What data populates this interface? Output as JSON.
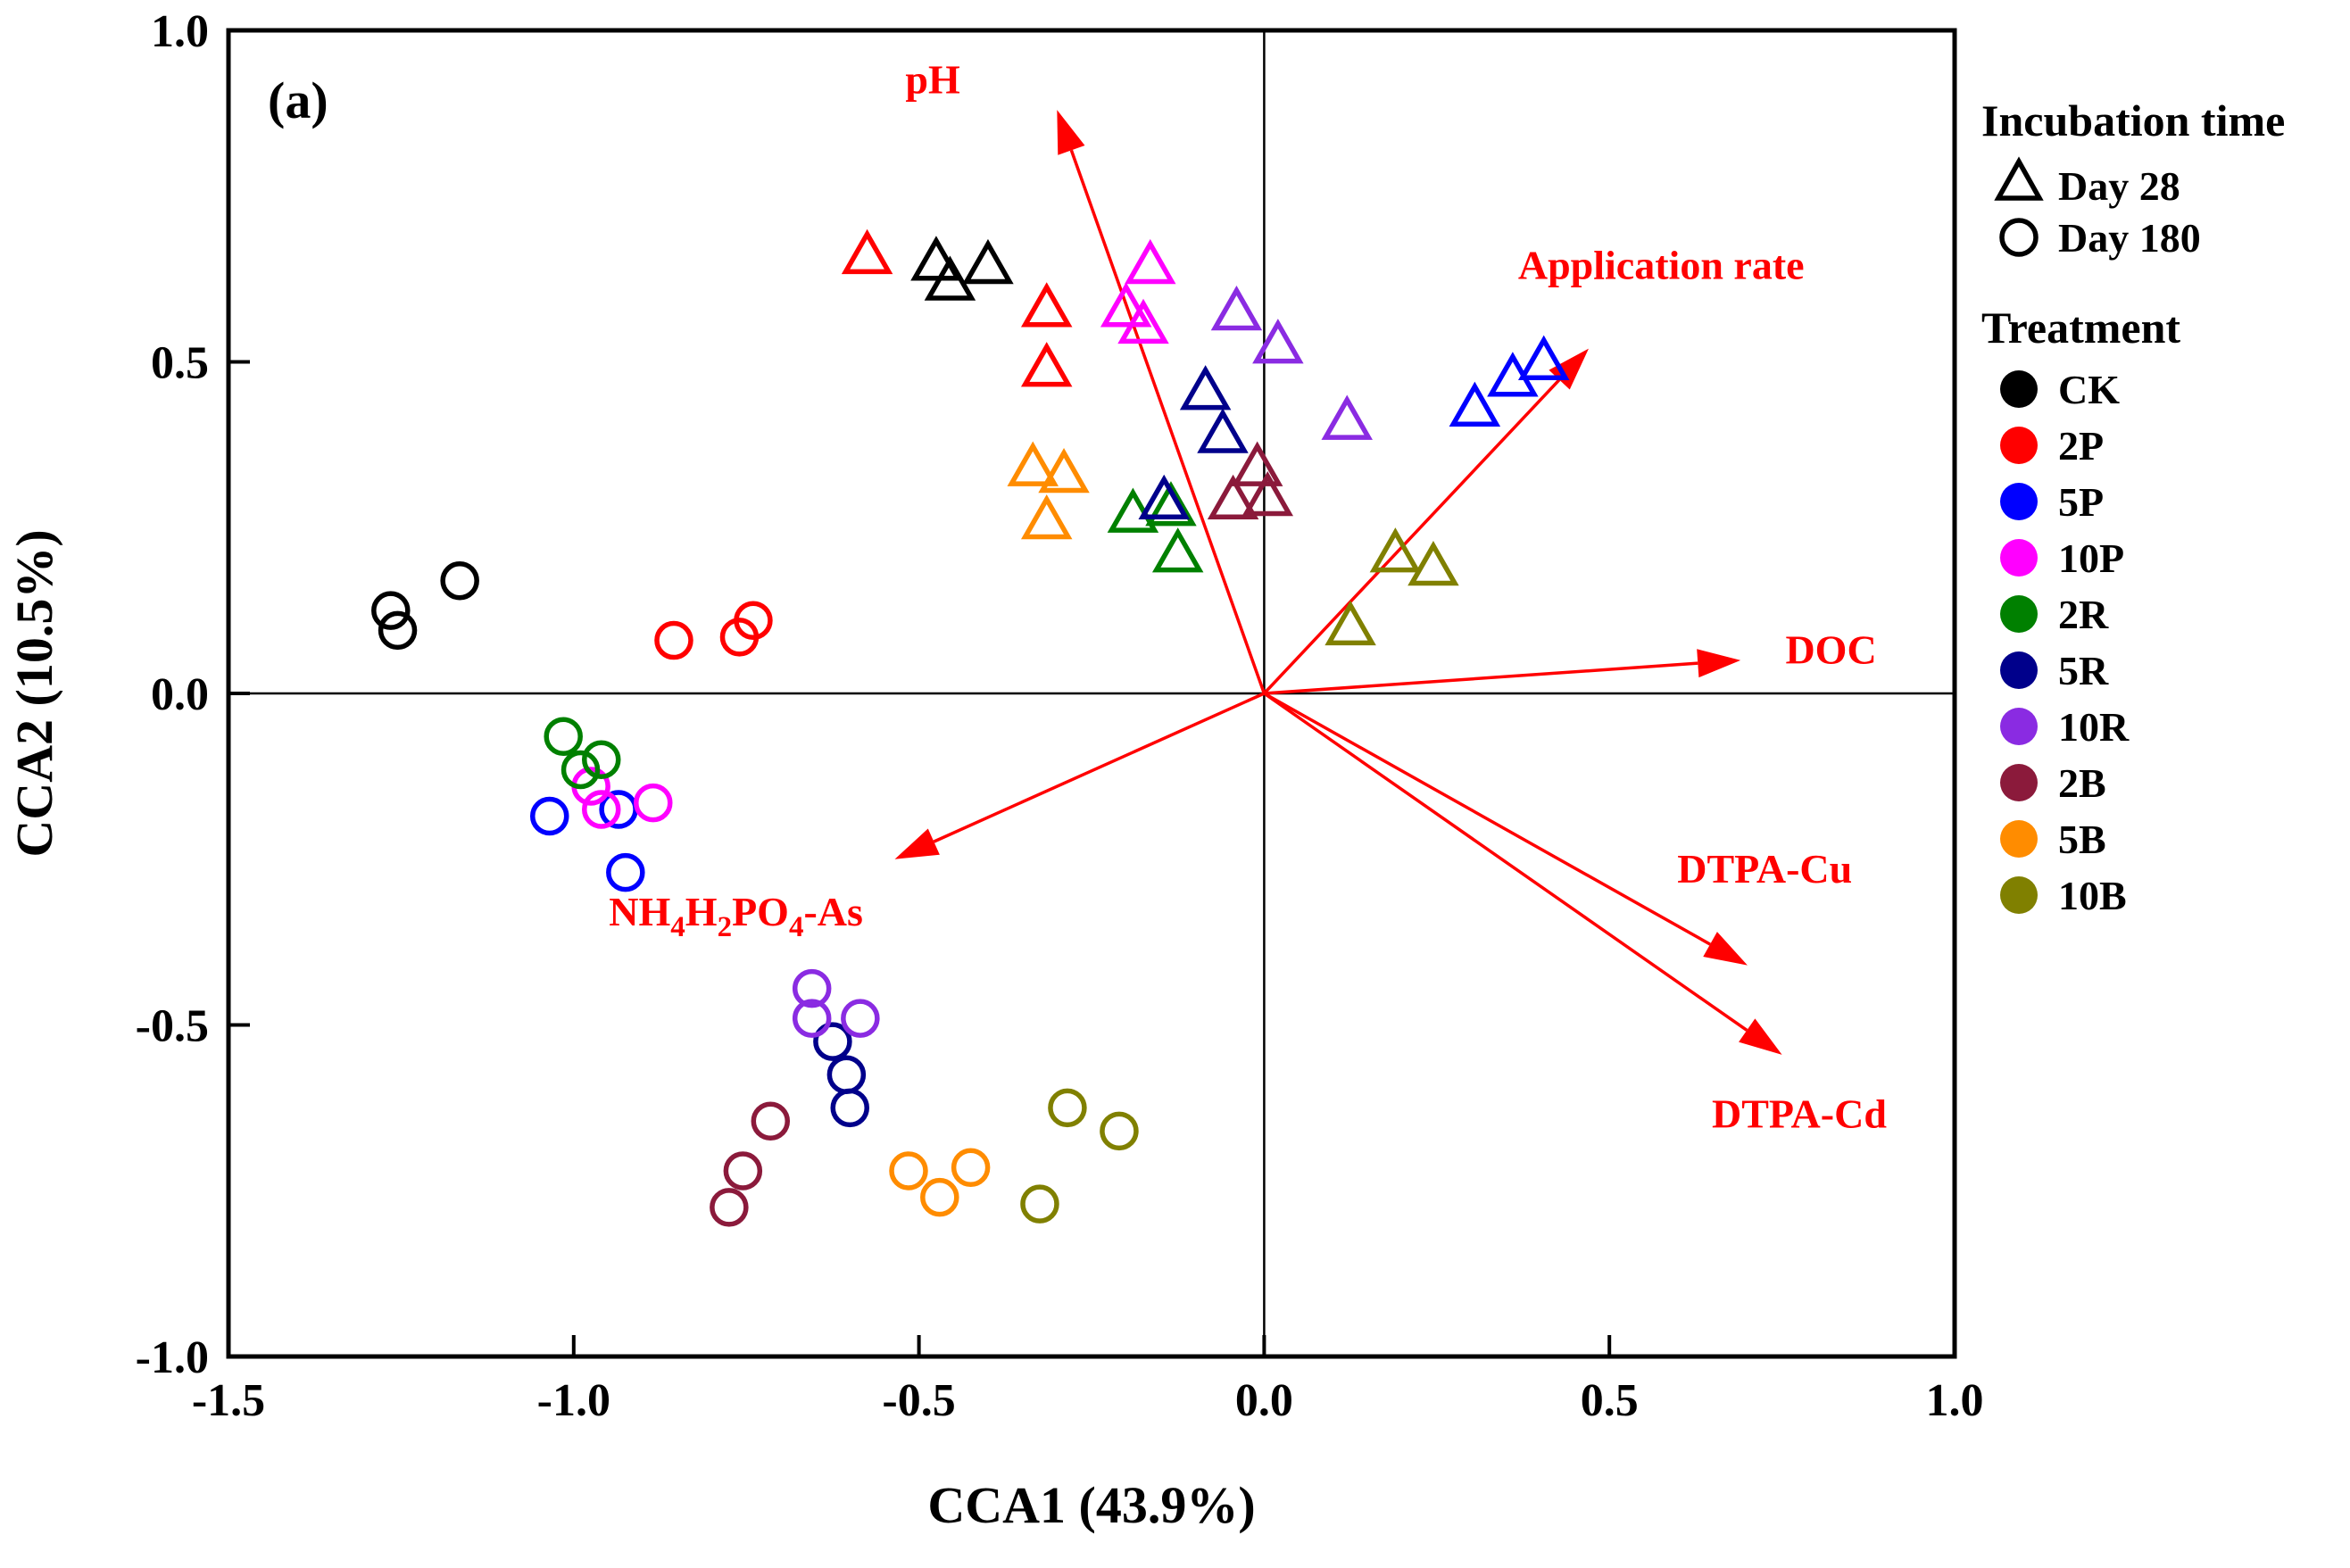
{
  "chart_data": {
    "type": "scatter",
    "panel_label": "(a)",
    "title": "",
    "xlabel": "CCA1 (43.9%)",
    "ylabel": "CCA2 (10.5%)",
    "xlim": [
      -1.5,
      1.0
    ],
    "ylim": [
      -1.0,
      1.0
    ],
    "grid": false,
    "legend_position": "right-outside",
    "axis_color": "#000000",
    "arrow_color": "#FF0000",
    "x_ticks": [
      {
        "v": -1.5,
        "label": "-1.5"
      },
      {
        "v": -1.0,
        "label": "-1.0"
      },
      {
        "v": -0.5,
        "label": "-0.5"
      },
      {
        "v": 0.0,
        "label": "0.0"
      },
      {
        "v": 0.5,
        "label": "0.5"
      },
      {
        "v": 1.0,
        "label": "1.0"
      }
    ],
    "y_ticks": [
      {
        "v": -1.0,
        "label": "-1.0"
      },
      {
        "v": -0.5,
        "label": "-0.5"
      },
      {
        "v": 0.0,
        "label": "0.0"
      },
      {
        "v": 0.5,
        "label": "0.5"
      },
      {
        "v": 1.0,
        "label": "1.0"
      }
    ],
    "incubation": [
      {
        "label": "Day 28",
        "marker": "triangle"
      },
      {
        "label": "Day 180",
        "marker": "circle"
      }
    ],
    "treatments": [
      {
        "label": "CK",
        "color": "#000000"
      },
      {
        "label": "2P",
        "color": "#FF0000"
      },
      {
        "label": "5P",
        "color": "#0000FF"
      },
      {
        "label": "10P",
        "color": "#FF00FF"
      },
      {
        "label": "2R",
        "color": "#008000"
      },
      {
        "label": "5R",
        "color": "#00008B"
      },
      {
        "label": "10R",
        "color": "#8A2BE2"
      },
      {
        "label": "2B",
        "color": "#8B1A3B"
      },
      {
        "label": "5B",
        "color": "#FF8C00"
      },
      {
        "label": "10B",
        "color": "#808000"
      }
    ],
    "vectors": [
      {
        "id": "ph",
        "name": "pH",
        "x": -0.3,
        "y": 0.88,
        "label_x": -0.48,
        "label_y": 0.905,
        "label_anchor": "middle"
      },
      {
        "id": "application-rate",
        "name": "Application rate",
        "x": 0.47,
        "y": 0.52,
        "label_x": 0.575,
        "label_y": 0.625,
        "label_anchor": "middle"
      },
      {
        "id": "doc",
        "name": "DOC",
        "x": 0.69,
        "y": 0.05,
        "label_x": 0.755,
        "label_y": 0.045,
        "label_anchor": "start"
      },
      {
        "id": "nh4h2po4-as",
        "name": "NH4H2PO4-As",
        "x": -0.535,
        "y": -0.25,
        "label_x": -0.765,
        "label_y": -0.35,
        "label_anchor": "middle",
        "label_parts": [
          {
            "t": "NH"
          },
          {
            "t": "4",
            "sub": true
          },
          {
            "t": "H"
          },
          {
            "t": "2",
            "sub": true
          },
          {
            "t": "PO"
          },
          {
            "t": "4",
            "sub": true
          },
          {
            "t": "-As"
          }
        ]
      },
      {
        "id": "dtpa-cu",
        "name": "DTPA-Cu",
        "x": 0.7,
        "y": -0.41,
        "label_x": 0.725,
        "label_y": -0.285,
        "label_anchor": "middle"
      },
      {
        "id": "dtpa-cd",
        "name": "DTPA-Cd",
        "x": 0.75,
        "y": -0.545,
        "label_x": 0.775,
        "label_y": -0.655,
        "label_anchor": "middle"
      }
    ],
    "points": [
      {
        "treatment": "CK",
        "time": "Day 28",
        "x": -0.475,
        "y": 0.645
      },
      {
        "treatment": "CK",
        "time": "Day 28",
        "x": -0.455,
        "y": 0.615
      },
      {
        "treatment": "CK",
        "time": "Day 28",
        "x": -0.4,
        "y": 0.64
      },
      {
        "treatment": "2P",
        "time": "Day 28",
        "x": -0.575,
        "y": 0.655
      },
      {
        "treatment": "2P",
        "time": "Day 28",
        "x": -0.315,
        "y": 0.575
      },
      {
        "treatment": "2P",
        "time": "Day 28",
        "x": -0.315,
        "y": 0.485
      },
      {
        "treatment": "5P",
        "time": "Day 28",
        "x": 0.305,
        "y": 0.425
      },
      {
        "treatment": "5P",
        "time": "Day 28",
        "x": 0.36,
        "y": 0.47
      },
      {
        "treatment": "5P",
        "time": "Day 28",
        "x": 0.405,
        "y": 0.495
      },
      {
        "treatment": "10P",
        "time": "Day 28",
        "x": -0.165,
        "y": 0.64
      },
      {
        "treatment": "10P",
        "time": "Day 28",
        "x": -0.2,
        "y": 0.575
      },
      {
        "treatment": "10P",
        "time": "Day 28",
        "x": -0.175,
        "y": 0.55
      },
      {
        "treatment": "2R",
        "time": "Day 28",
        "x": -0.19,
        "y": 0.265
      },
      {
        "treatment": "2R",
        "time": "Day 28",
        "x": -0.135,
        "y": 0.275
      },
      {
        "treatment": "2R",
        "time": "Day 28",
        "x": -0.125,
        "y": 0.205
      },
      {
        "treatment": "5R",
        "time": "Day 28",
        "x": -0.085,
        "y": 0.45
      },
      {
        "treatment": "5R",
        "time": "Day 28",
        "x": -0.06,
        "y": 0.385
      },
      {
        "treatment": "5R",
        "time": "Day 28",
        "x": -0.145,
        "y": 0.285
      },
      {
        "treatment": "10R",
        "time": "Day 28",
        "x": -0.04,
        "y": 0.57
      },
      {
        "treatment": "10R",
        "time": "Day 28",
        "x": 0.02,
        "y": 0.52
      },
      {
        "treatment": "10R",
        "time": "Day 28",
        "x": 0.12,
        "y": 0.405
      },
      {
        "treatment": "2B",
        "time": "Day 28",
        "x": -0.01,
        "y": 0.335
      },
      {
        "treatment": "2B",
        "time": "Day 28",
        "x": 0.005,
        "y": 0.29
      },
      {
        "treatment": "2B",
        "time": "Day 28",
        "x": -0.045,
        "y": 0.285
      },
      {
        "treatment": "5B",
        "time": "Day 28",
        "x": -0.335,
        "y": 0.335
      },
      {
        "treatment": "5B",
        "time": "Day 28",
        "x": -0.29,
        "y": 0.325
      },
      {
        "treatment": "5B",
        "time": "Day 28",
        "x": -0.315,
        "y": 0.255
      },
      {
        "treatment": "10B",
        "time": "Day 28",
        "x": 0.19,
        "y": 0.205
      },
      {
        "treatment": "10B",
        "time": "Day 28",
        "x": 0.245,
        "y": 0.185
      },
      {
        "treatment": "10B",
        "time": "Day 28",
        "x": 0.125,
        "y": 0.095
      },
      {
        "treatment": "CK",
        "time": "Day 180",
        "x": -1.265,
        "y": 0.125
      },
      {
        "treatment": "CK",
        "time": "Day 180",
        "x": -1.255,
        "y": 0.095
      },
      {
        "treatment": "CK",
        "time": "Day 180",
        "x": -1.165,
        "y": 0.17
      },
      {
        "treatment": "2P",
        "time": "Day 180",
        "x": -0.855,
        "y": 0.08
      },
      {
        "treatment": "2P",
        "time": "Day 180",
        "x": -0.76,
        "y": 0.085
      },
      {
        "treatment": "2P",
        "time": "Day 180",
        "x": -0.74,
        "y": 0.11
      },
      {
        "treatment": "5P",
        "time": "Day 180",
        "x": -1.035,
        "y": -0.185
      },
      {
        "treatment": "5P",
        "time": "Day 180",
        "x": -0.935,
        "y": -0.175
      },
      {
        "treatment": "5P",
        "time": "Day 180",
        "x": -0.925,
        "y": -0.27
      },
      {
        "treatment": "10P",
        "time": "Day 180",
        "x": -0.975,
        "y": -0.14
      },
      {
        "treatment": "10P",
        "time": "Day 180",
        "x": -0.96,
        "y": -0.175
      },
      {
        "treatment": "10P",
        "time": "Day 180",
        "x": -0.885,
        "y": -0.165
      },
      {
        "treatment": "2R",
        "time": "Day 180",
        "x": -1.015,
        "y": -0.065
      },
      {
        "treatment": "2R",
        "time": "Day 180",
        "x": -0.96,
        "y": -0.1
      },
      {
        "treatment": "2R",
        "time": "Day 180",
        "x": -0.99,
        "y": -0.115
      },
      {
        "treatment": "5R",
        "time": "Day 180",
        "x": -0.625,
        "y": -0.525
      },
      {
        "treatment": "5R",
        "time": "Day 180",
        "x": -0.605,
        "y": -0.575
      },
      {
        "treatment": "5R",
        "time": "Day 180",
        "x": -0.6,
        "y": -0.625
      },
      {
        "treatment": "10R",
        "time": "Day 180",
        "x": -0.655,
        "y": -0.445
      },
      {
        "treatment": "10R",
        "time": "Day 180",
        "x": -0.655,
        "y": -0.49
      },
      {
        "treatment": "10R",
        "time": "Day 180",
        "x": -0.585,
        "y": -0.49
      },
      {
        "treatment": "2B",
        "time": "Day 180",
        "x": -0.715,
        "y": -0.645
      },
      {
        "treatment": "2B",
        "time": "Day 180",
        "x": -0.755,
        "y": -0.72
      },
      {
        "treatment": "2B",
        "time": "Day 180",
        "x": -0.775,
        "y": -0.775
      },
      {
        "treatment": "5B",
        "time": "Day 180",
        "x": -0.515,
        "y": -0.72
      },
      {
        "treatment": "5B",
        "time": "Day 180",
        "x": -0.47,
        "y": -0.76
      },
      {
        "treatment": "5B",
        "time": "Day 180",
        "x": -0.425,
        "y": -0.715
      },
      {
        "treatment": "10B",
        "time": "Day 180",
        "x": -0.285,
        "y": -0.625
      },
      {
        "treatment": "10B",
        "time": "Day 180",
        "x": -0.21,
        "y": -0.66
      },
      {
        "treatment": "10B",
        "time": "Day 180",
        "x": -0.325,
        "y": -0.77
      }
    ]
  },
  "legend": {
    "incubation_title": "Incubation time",
    "treatment_title": "Treatment"
  }
}
